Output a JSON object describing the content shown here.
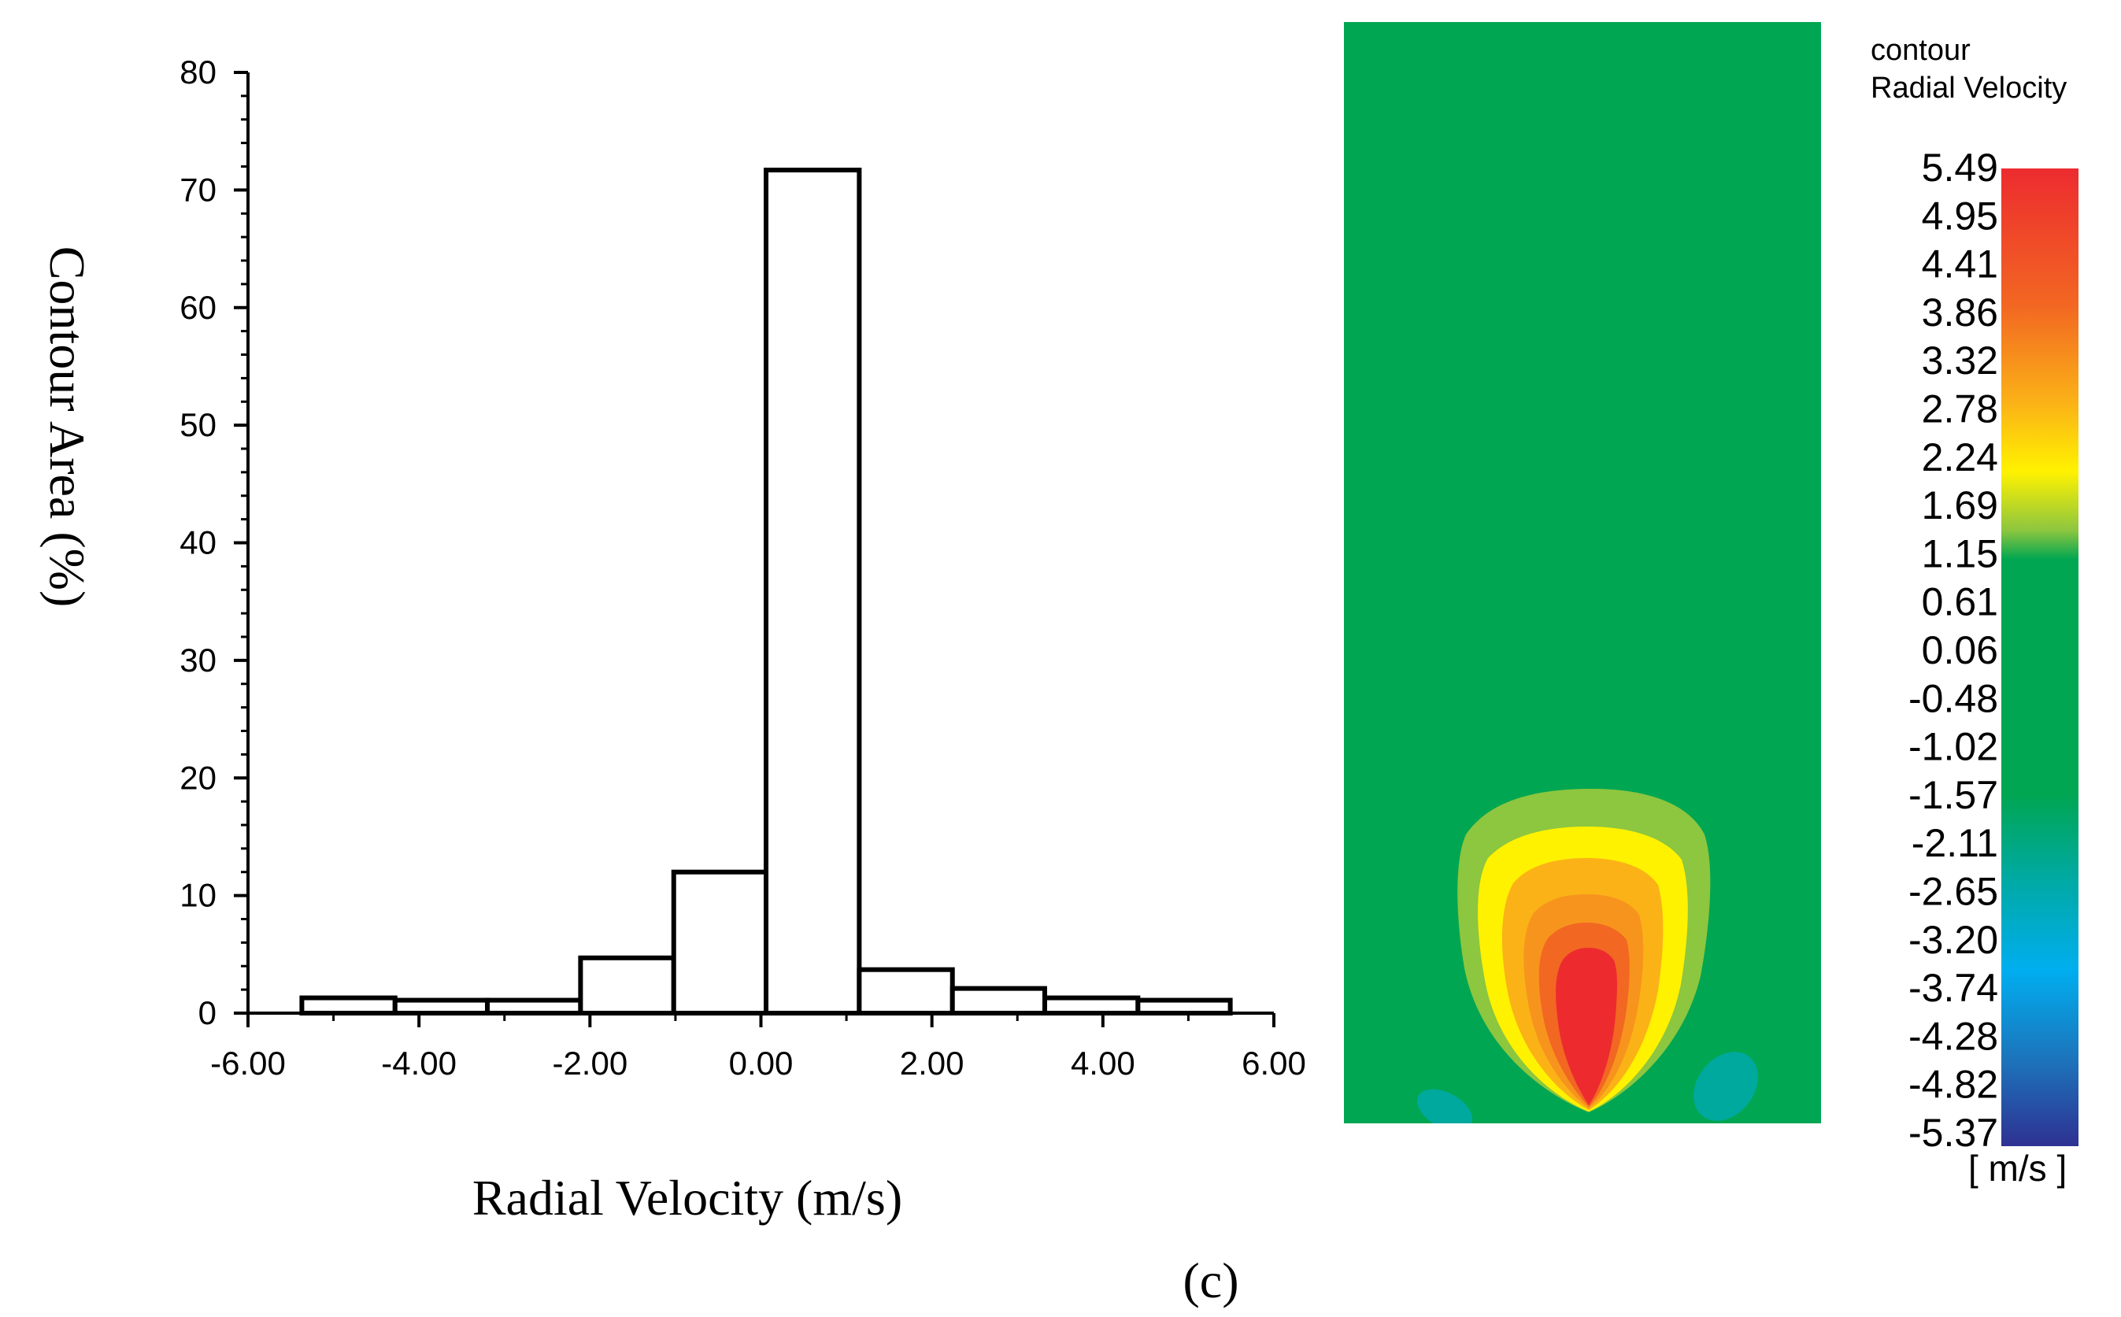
{
  "caption": "(c)",
  "chart_data": {
    "type": "bar",
    "subtype": "histogram",
    "xlabel": "Radial Velocity (m/s)",
    "ylabel": "Contour Area (%)",
    "xlim": [
      -6.0,
      6.0
    ],
    "ylim": [
      0,
      80
    ],
    "x_ticks": [
      -6,
      -4,
      -2,
      0,
      2,
      4,
      6
    ],
    "x_tick_labels": [
      "-6.00",
      "-4.00",
      "-2.00",
      "0.00",
      "2.00",
      "4.00",
      "6.00"
    ],
    "y_ticks": [
      0,
      10,
      20,
      30,
      40,
      50,
      60,
      70,
      80
    ],
    "y_tick_labels": [
      "0",
      "10",
      "20",
      "30",
      "40",
      "50",
      "60",
      "70",
      "80"
    ],
    "bin_edges": [
      -5.37,
      -4.28,
      -3.2,
      -2.11,
      -1.02,
      0.06,
      1.15,
      2.24,
      3.32,
      4.41,
      5.49
    ],
    "values": [
      1.3,
      1.1,
      1.1,
      4.7,
      12.0,
      71.7,
      3.7,
      2.1,
      1.3,
      1.1
    ]
  },
  "contour_plot": {
    "legend_title_line1": "contour",
    "legend_title_line2": "Radial Velocity",
    "unit": "[ m/s ]",
    "colorbar_labels": [
      "5.49",
      "4.95",
      "4.41",
      "3.86",
      "3.32",
      "2.78",
      "2.24",
      "1.69",
      "1.15",
      "0.61",
      "0.06",
      "-0.48",
      "-1.02",
      "-1.57",
      "-2.11",
      "-2.65",
      "-3.20",
      "-3.74",
      "-4.28",
      "-4.82",
      "-5.37"
    ],
    "colors": {
      "background": "#00a651",
      "red": "#ed2b2f",
      "orange": "#f26722",
      "light_orange": "#f7941d",
      "amber": "#fbb217",
      "yellow": "#fff200",
      "yellow_green": "#8dc63f",
      "teal": "#00a99d",
      "cyan": "#00aeef",
      "blue": "#1c75bc",
      "indigo": "#2e3192"
    }
  }
}
